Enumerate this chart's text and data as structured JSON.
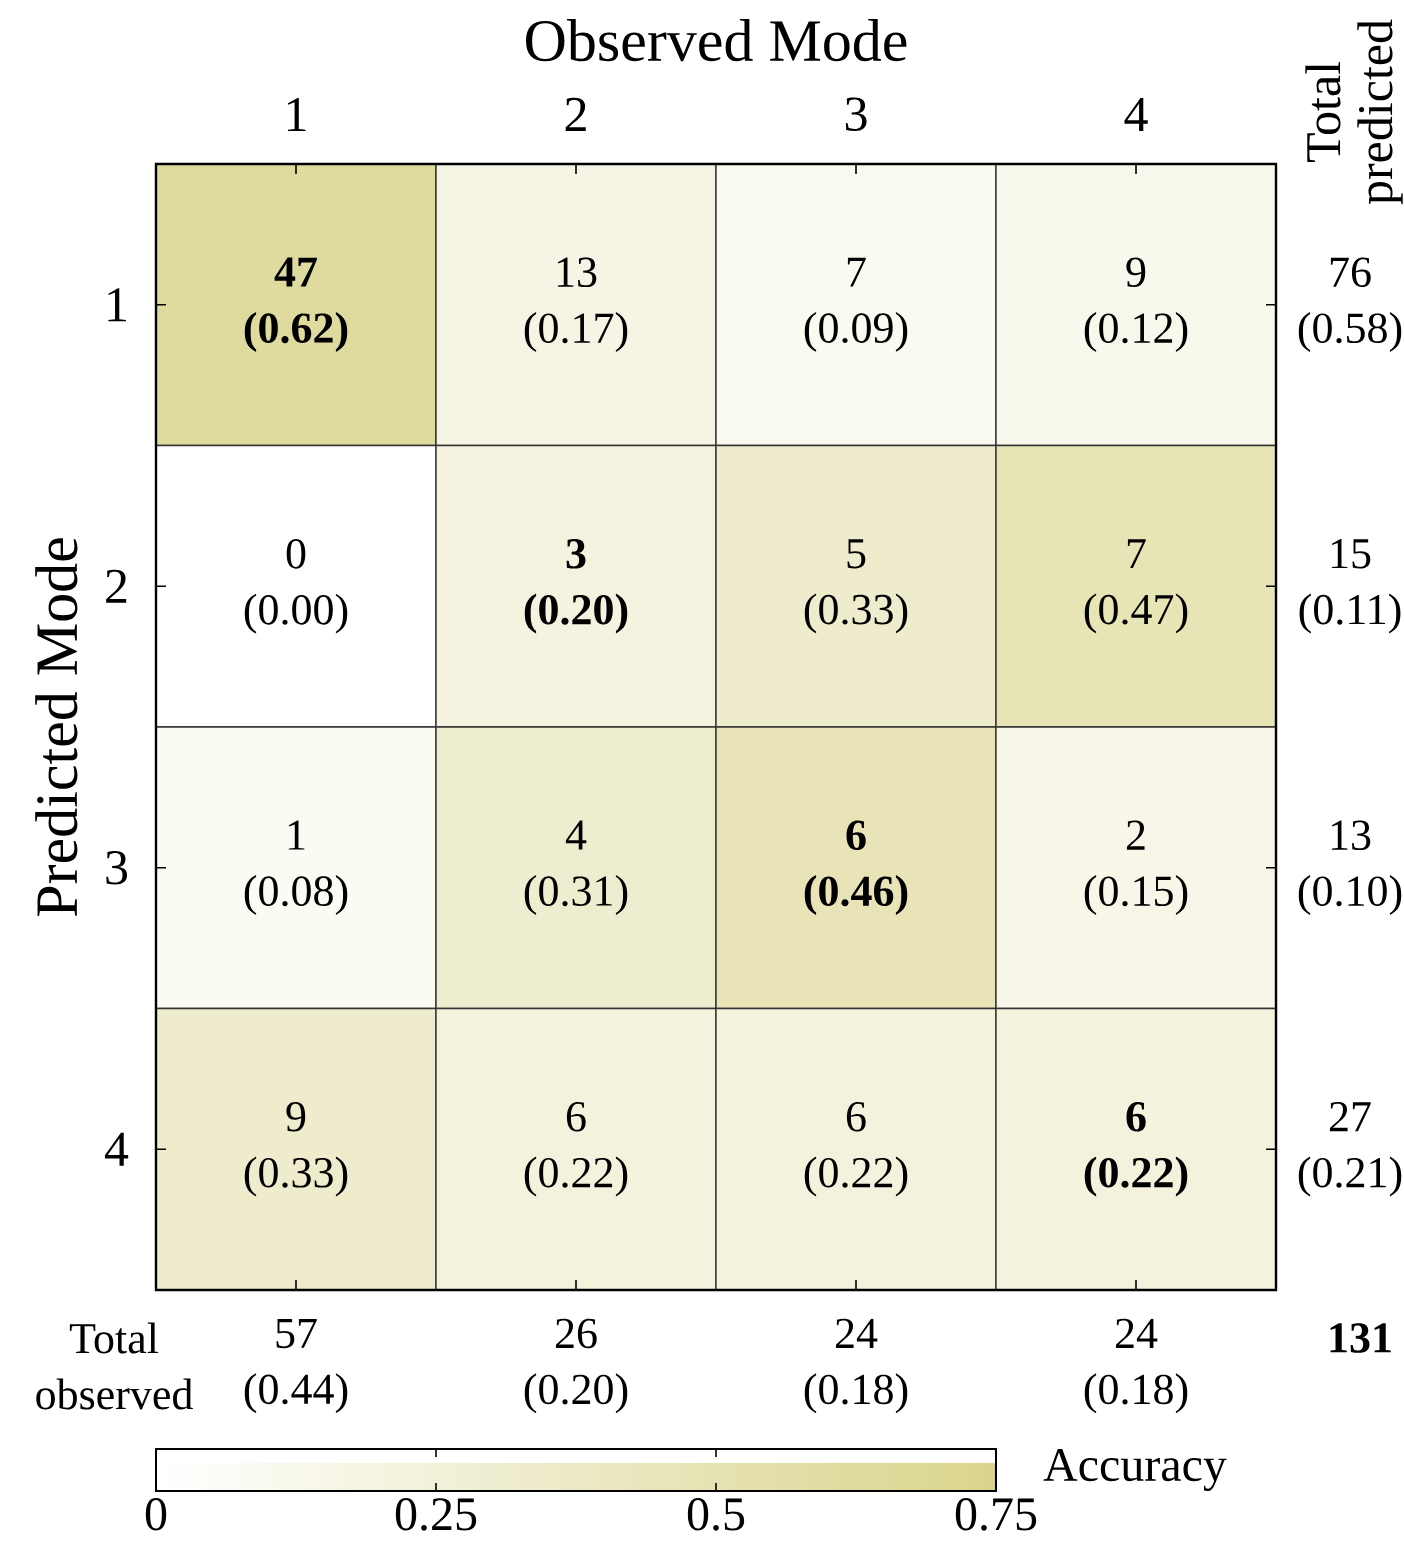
{
  "chart_data": {
    "type": "heatmap",
    "xlabel": "Observed Mode",
    "ylabel": "Predicted Mode",
    "y2label": "Total predicted",
    "clabel": "Accuracy",
    "categories": [
      "1",
      "2",
      "3",
      "4"
    ],
    "y_categories": [
      "1",
      "2",
      "3",
      "4"
    ],
    "y2_categories": [
      "76 (0.58)",
      "15 (0.11)",
      "13 (0.10)",
      "27 (0.21)"
    ],
    "cells": [
      [
        0.62,
        0.17,
        0.09,
        0.12
      ],
      [
        0.0,
        0.2,
        0.33,
        0.47
      ],
      [
        0.08,
        0.31,
        0.46,
        0.15
      ],
      [
        0.33,
        0.22,
        0.22,
        0.22
      ]
    ],
    "cell_labels": [
      [
        "47 (0.62)",
        "13 (0.17)",
        "7 (0.09)",
        "9 (0.12)"
      ],
      [
        "0 (0.00)",
        "3 (0.20)",
        "5 (0.33)",
        "7 (0.47)"
      ],
      [
        "1 (0.08)",
        "4 (0.31)",
        "6 (0.46)",
        "2 (0.15)"
      ],
      [
        "9 (0.33)",
        "6 (0.22)",
        "6 (0.22)",
        "6 (0.22)"
      ]
    ],
    "clim": [
      0,
      0.75
    ],
    "cticks": [
      0,
      0.25,
      0.5,
      0.75
    ],
    "color": "#d9d48b",
    "annotations": [
      "Total observed",
      "57 (0.44)",
      "26 (0.20)",
      "24 (0.18)",
      "24 (0.18)",
      "131"
    ]
  }
}
